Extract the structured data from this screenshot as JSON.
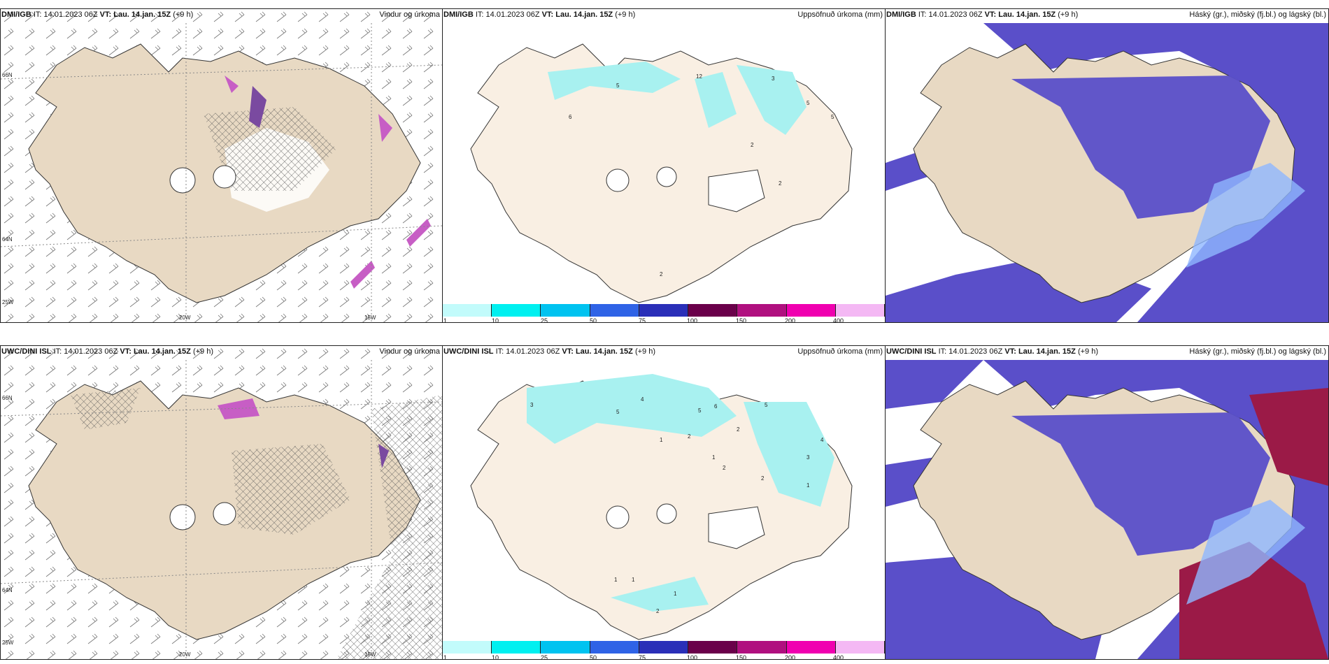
{
  "colors": {
    "land": "#e8d9c3",
    "land_light": "#f9efe3",
    "cloud_mid": "#5a4fc9",
    "cloud_light": "#8fb7ff",
    "cyan": "#a8f1f0",
    "precip": "#c75ec5",
    "high_cloud": "#9b1a47"
  },
  "rows": [
    {
      "model": "DMI/IGB",
      "it_label": "IT:",
      "it": "14.01.2023 06Z",
      "vt_label": "VT:",
      "vt": "Lau. 14.jan. 15Z",
      "lead": "(+9 h)"
    },
    {
      "model": "UWC/DINI ISL",
      "it_label": "IT:",
      "it": "14.01.2023 06Z",
      "vt_label": "VT:",
      "vt": "Lau. 14.jan. 15Z",
      "lead": "(+9 h)"
    }
  ],
  "panel_titles": {
    "wind": "Vindur og úrkoma",
    "precip": "Uppsöfnuð úrkoma (mm)",
    "cloud": "Háský (gr.), miðský (fj.bl.) og lágský (bl.)"
  },
  "axis_labels": {
    "lat66": "66N",
    "lat64": "64N",
    "lon20": "20W",
    "lon15": "15W",
    "lon25": "25W"
  },
  "colorbar": {
    "ticks": [
      "1",
      "10",
      "25",
      "50",
      "75",
      "100",
      "150",
      "200",
      "400"
    ],
    "colors": [
      "#c2fbfb",
      "#00f0f0",
      "#00c3f0",
      "#2f63e6",
      "#2a2fb8",
      "#6a004a",
      "#b0107f",
      "#f000b0",
      "#f4b8f4"
    ]
  },
  "precip_top_values": [
    "5",
    "6",
    "12",
    "3",
    "5",
    "5",
    "2",
    "2",
    "2"
  ],
  "precip_bottom_values": [
    "4",
    "5",
    "5",
    "6",
    "5",
    "4",
    "3",
    "1",
    "3",
    "2",
    "2",
    "2",
    "1",
    "1",
    "1",
    "1",
    "2",
    "2",
    "1"
  ]
}
